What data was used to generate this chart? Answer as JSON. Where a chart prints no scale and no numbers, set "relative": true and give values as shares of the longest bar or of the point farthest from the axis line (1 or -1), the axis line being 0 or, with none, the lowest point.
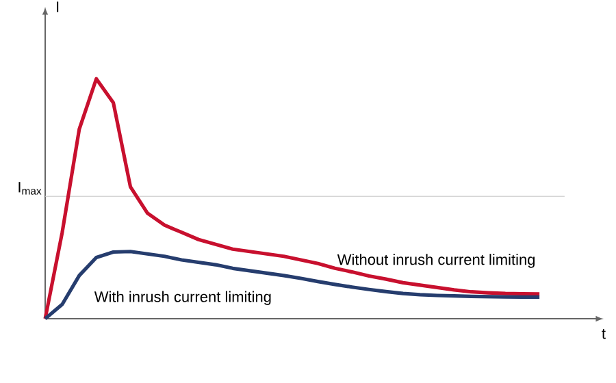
{
  "chart_data": {
    "type": "line",
    "relative": true,
    "xlabel": "t",
    "ylabel": "I",
    "categories": [
      null,
      null,
      null,
      null,
      null,
      null,
      null,
      null,
      null,
      null,
      null,
      null,
      null,
      null,
      null,
      null,
      null,
      null,
      null,
      null,
      null,
      null,
      null,
      null,
      null,
      null,
      null,
      null,
      null,
      null
    ],
    "series": [
      {
        "name": "Without inrush current limiting",
        "color": "#c8102e",
        "values": [
          0,
          0.36,
          0.79,
          1,
          0.9,
          0.55,
          0.44,
          0.39,
          0.36,
          0.33,
          0.31,
          0.29,
          0.28,
          0.27,
          0.26,
          0.245,
          0.23,
          0.21,
          0.195,
          0.178,
          0.165,
          0.15,
          0.14,
          0.13,
          0.12,
          0.112,
          0.108,
          0.105,
          0.104,
          0.103
        ]
      },
      {
        "name": "With inrush current limiting",
        "color": "#263d6e",
        "values": [
          0,
          0.06,
          0.18,
          0.255,
          0.278,
          0.28,
          0.27,
          0.26,
          0.245,
          0.235,
          0.225,
          0.21,
          0.2,
          0.19,
          0.18,
          0.168,
          0.155,
          0.143,
          0.132,
          0.122,
          0.113,
          0.105,
          0.1,
          0.097,
          0.095,
          0.093,
          0.092,
          0.091,
          0.09,
          0.09
        ]
      }
    ],
    "ref_lines": [
      {
        "axis": "y",
        "value": 0.51,
        "label": "I$_{max}$",
        "color": "#c8c8c8"
      }
    ]
  }
}
